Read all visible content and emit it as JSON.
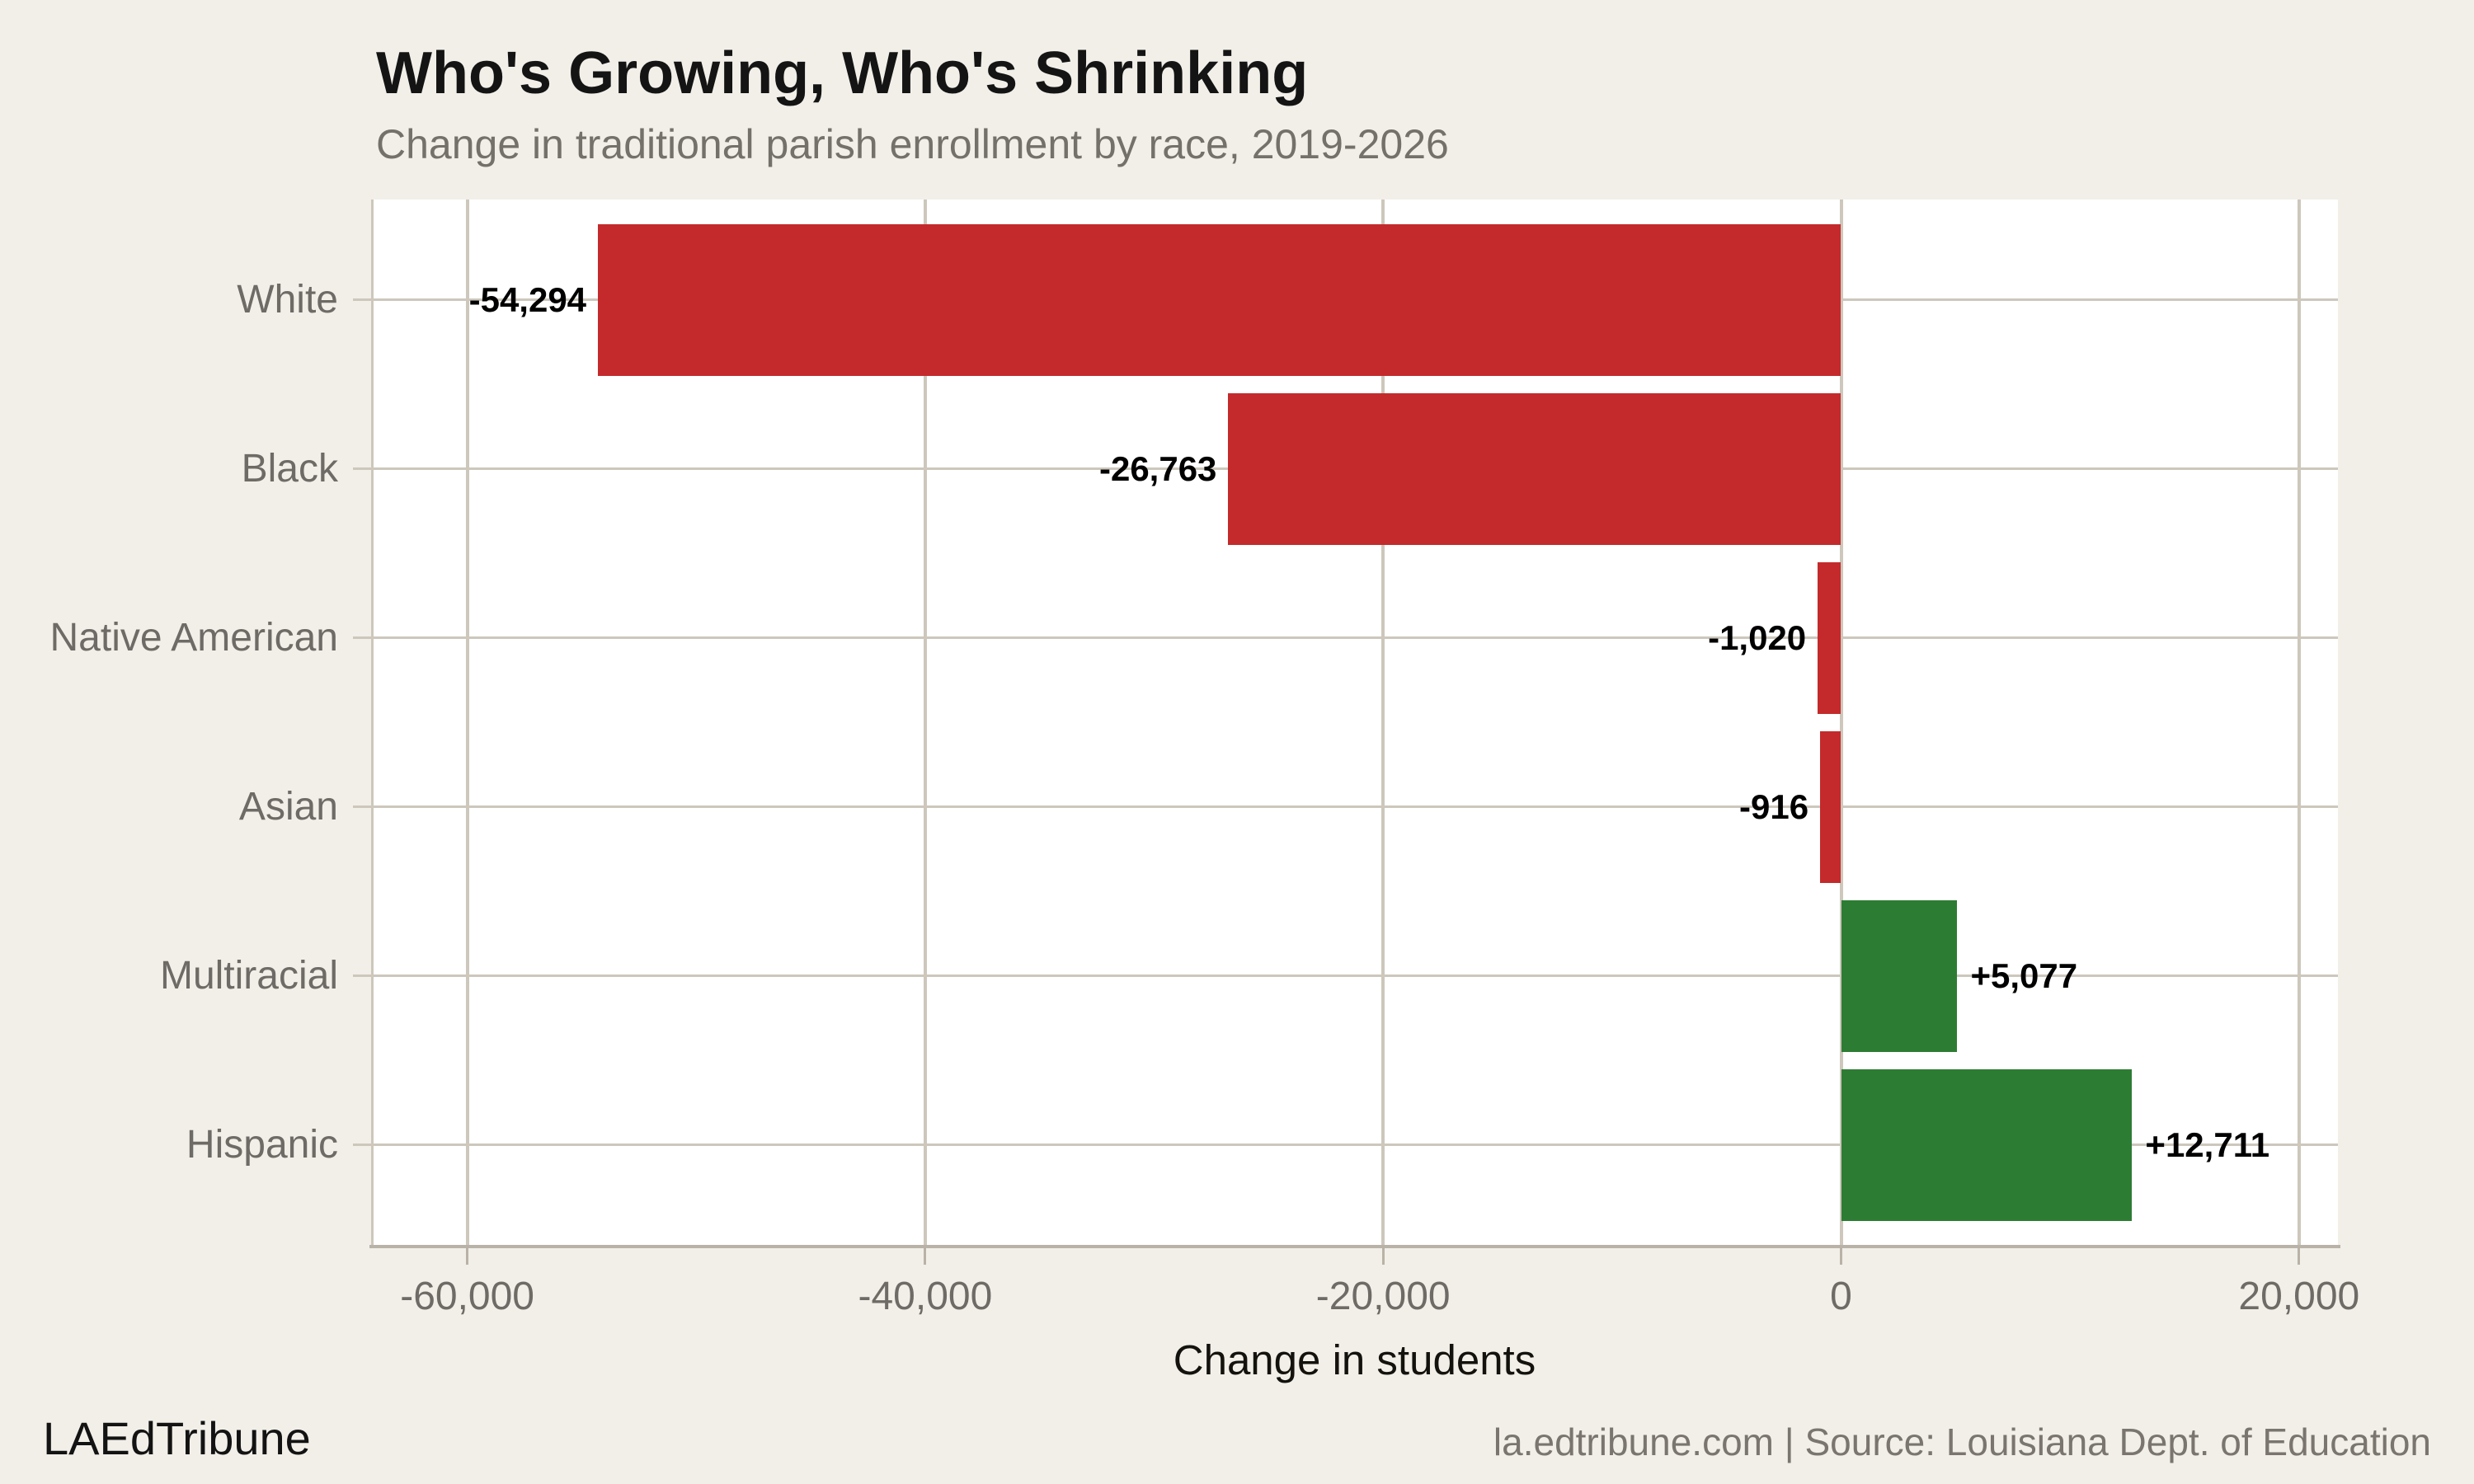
{
  "header": {
    "title": "Who's Growing, Who's Shrinking",
    "subtitle": "Change in traditional parish enrollment by race, 2019-2026"
  },
  "chart_data": {
    "type": "bar",
    "orientation": "horizontal",
    "title": "Who's Growing, Who's Shrinking",
    "subtitle": "Change in traditional parish enrollment by race, 2019-2026",
    "categories": [
      "White",
      "Black",
      "Native American",
      "Asian",
      "Multiracial",
      "Hispanic"
    ],
    "values": [
      -54294,
      -26763,
      -1020,
      -916,
      5077,
      12711
    ],
    "value_labels": [
      "-54,294",
      "-26,763",
      "-1,020",
      "-916",
      "+5,077",
      "+12,711"
    ],
    "xlabel": "Change in students",
    "ylabel": "",
    "xlim": [
      -64200,
      21700
    ],
    "xticks": [
      -60000,
      -40000,
      -20000,
      0,
      20000
    ],
    "xtick_labels": [
      "-60,000",
      "-40,000",
      "-20,000",
      "0",
      "20,000"
    ],
    "grid": true,
    "legend": "none",
    "colors": {
      "negative_bar": "#c42a2b",
      "positive_bar": "#2d7c34",
      "background": "#f2efe9",
      "panel_background": "#ffffff",
      "gridline": "#cdc7bc",
      "axis_line": "#b9b2a7",
      "tick_text": "#6e6b66",
      "value_label_text": "#000000"
    }
  },
  "footer": {
    "brand": "LAEdTribune",
    "source": "la.edtribune.com | Source: Louisiana Dept. of Education"
  }
}
